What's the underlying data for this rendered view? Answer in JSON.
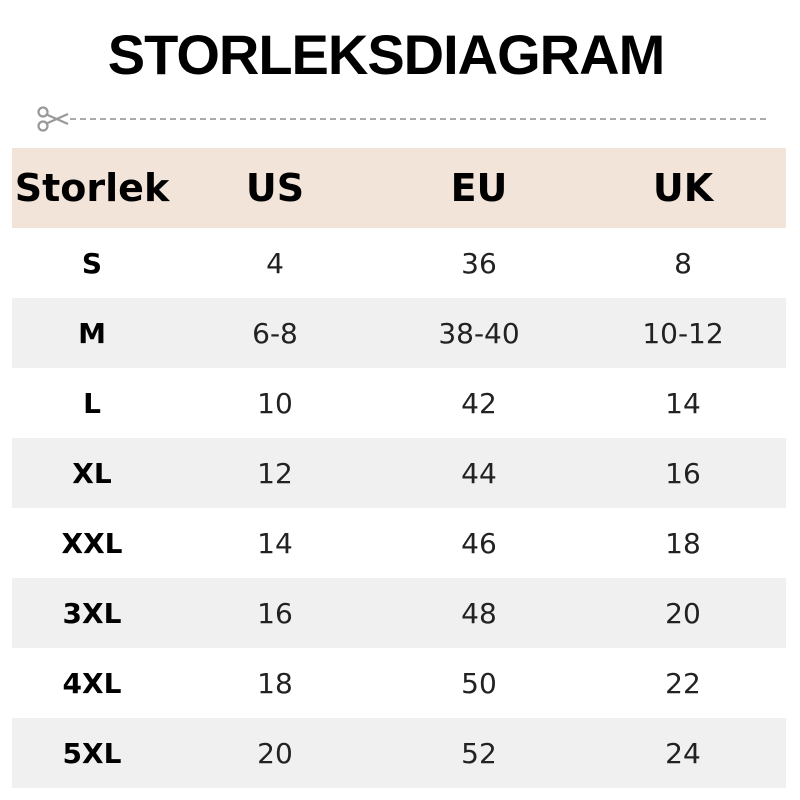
{
  "title": "STORLEKSDIAGRAM",
  "colors": {
    "header_bg": "#f2e4d8",
    "stripe_bg": "#f0f0f0"
  },
  "headers": [
    "Storlek",
    "US",
    "EU",
    "UK"
  ],
  "rows": [
    [
      "S",
      "4",
      "36",
      "8"
    ],
    [
      "M",
      "6-8",
      "38-40",
      "10-12"
    ],
    [
      "L",
      "10",
      "42",
      "14"
    ],
    [
      "XL",
      "12",
      "44",
      "16"
    ],
    [
      "XXL",
      "14",
      "46",
      "18"
    ],
    [
      "3XL",
      "16",
      "48",
      "20"
    ],
    [
      "4XL",
      "18",
      "50",
      "22"
    ],
    [
      "5XL",
      "20",
      "52",
      "24"
    ]
  ]
}
